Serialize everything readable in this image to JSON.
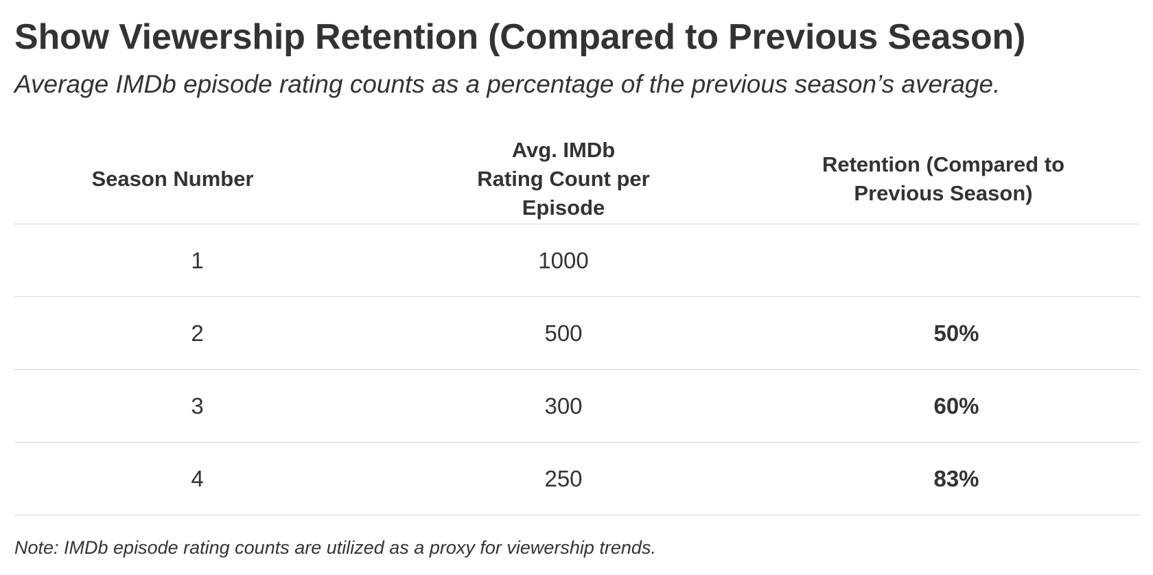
{
  "title": "Show Viewership Retention (Compared to Previous Season)",
  "subtitle": "Average IMDb episode rating counts as a percentage of the previous season’s average.",
  "table": {
    "headers": {
      "season": "Season Number",
      "count": "Avg. IMDb Rating Count per Episode",
      "retention": "Retention (Compared to Previous Season)"
    },
    "rows": [
      {
        "season": "1",
        "count": "1000",
        "retention": ""
      },
      {
        "season": "2",
        "count": "500",
        "retention": "50%"
      },
      {
        "season": "3",
        "count": "300",
        "retention": "60%"
      },
      {
        "season": "4",
        "count": "250",
        "retention": "83%"
      }
    ]
  },
  "note": "Note: IMDb episode rating counts are utilized as a proxy for viewership trends.",
  "colors": {
    "text": "#333333",
    "rule": "#d6d6d6",
    "background": "#ffffff"
  }
}
